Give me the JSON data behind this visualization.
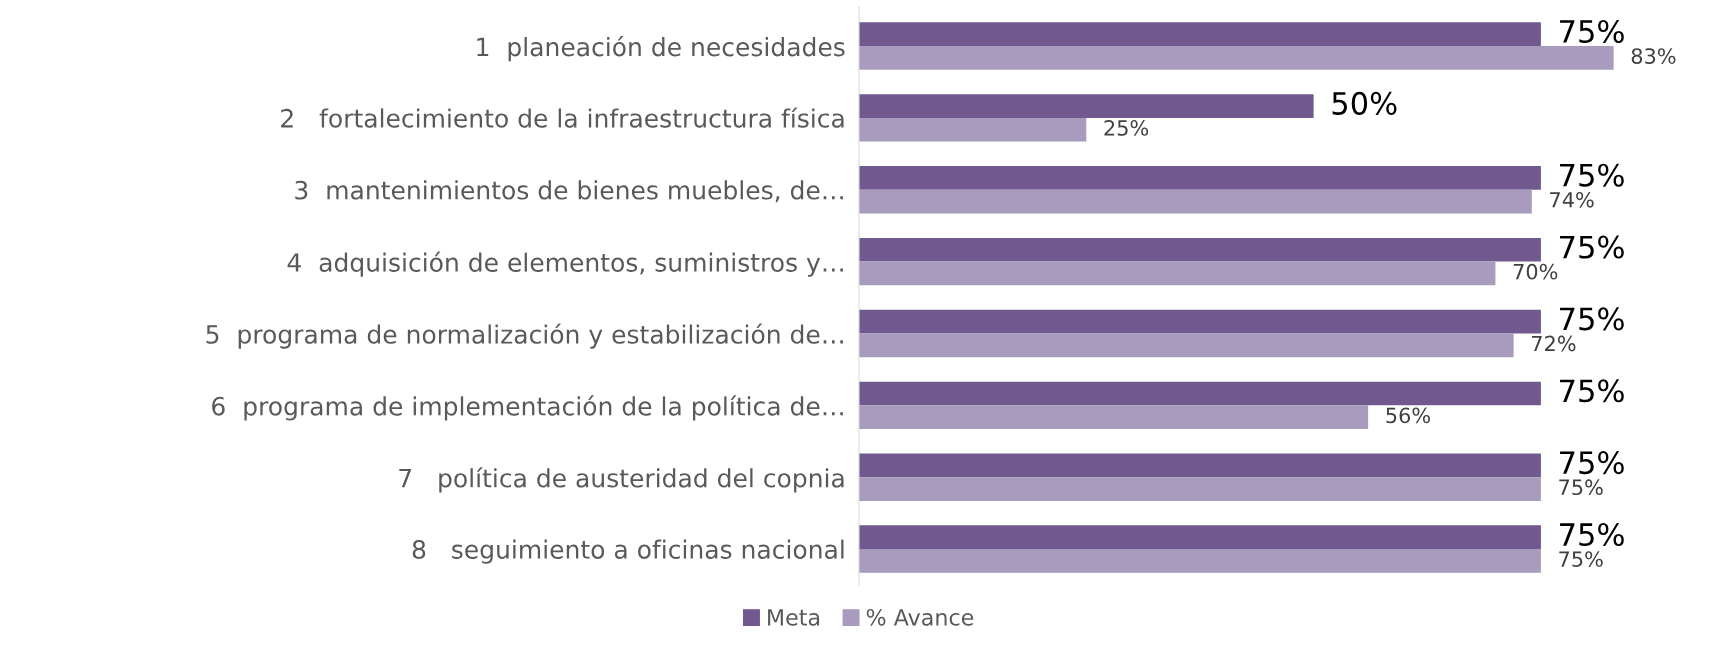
{
  "chart_data": {
    "type": "bar",
    "orientation": "horizontal",
    "categories": [
      "1  planeación de necesidades",
      "2   fortalecimiento de la infraestructura física",
      "3  mantenimientos de bienes muebles, de…",
      "4  adquisición de elementos, suministros y…",
      "5  programa de normalización y estabilización de…",
      "6  programa de implementación de la política de…",
      "7   política de austeridad del copnia",
      "8   seguimiento a oficinas nacional"
    ],
    "series": [
      {
        "name": "Meta",
        "color": "#71588f",
        "values": [
          75,
          50,
          75,
          75,
          75,
          75,
          75,
          75
        ],
        "value_labels": [
          "75%",
          "50%",
          "75%",
          "75%",
          "75%",
          "75%",
          "75%",
          "75%"
        ]
      },
      {
        "name": "% Avance",
        "color": "#a99bbd",
        "values": [
          83,
          25,
          74,
          70,
          72,
          56,
          75,
          75
        ],
        "value_labels": [
          "83%",
          "25%",
          "74%",
          "70%",
          "72%",
          "56%",
          "75%",
          "75%"
        ]
      }
    ],
    "grid": false,
    "legend": "bottom",
    "tick_labels": "y"
  }
}
